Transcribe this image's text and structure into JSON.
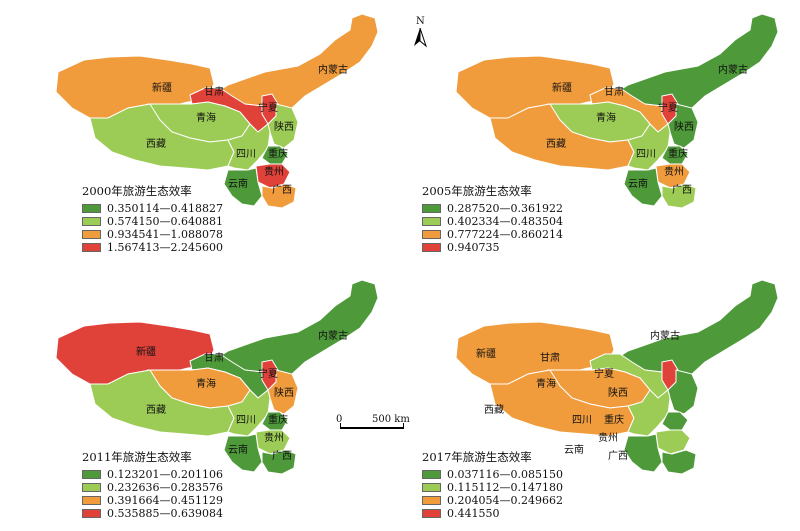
{
  "colors": {
    "dark_green": "#4e9a3a",
    "light_green": "#9ccc55",
    "orange": "#f09c3c",
    "red": "#e0423a"
  },
  "compass": {
    "north_label": "N"
  },
  "scale_bar": {
    "start_label": "0",
    "end_label": "500 km"
  },
  "region_labels": {
    "xinjiang": "新疆",
    "gansu": "甘肃",
    "neimenggu": "内蒙古",
    "qinghai": "青海",
    "ningxia": "宁夏",
    "shaanxi": "陕西",
    "xizang": "西藏",
    "sichuan": "四川",
    "chongqing": "重庆",
    "guizhou": "贵州",
    "yunnan": "云南",
    "guangxi": "广西"
  },
  "maps": [
    {
      "legend_title": "2000年旅游生态效率",
      "legend": [
        {
          "range": "0.350114—0.418827",
          "class": "dark_green"
        },
        {
          "range": "0.574150—0.640881",
          "class": "light_green"
        },
        {
          "range": "0.934541—1.088078",
          "class": "orange"
        },
        {
          "range": "1.567413—2.245600",
          "class": "red"
        }
      ],
      "fills": {
        "xinjiang": "orange",
        "xizang": "light_green",
        "qinghai": "light_green",
        "gansu": "red",
        "neimenggu": "orange",
        "ningxia": "red",
        "shaanxi": "light_green",
        "sichuan": "light_green",
        "chongqing": "dark_green",
        "guizhou": "red",
        "yunnan": "dark_green",
        "guangxi": "orange"
      }
    },
    {
      "legend_title": "2005年旅游生态效率",
      "legend": [
        {
          "range": "0.287520—0.361922",
          "class": "dark_green"
        },
        {
          "range": "0.402334—0.483504",
          "class": "light_green"
        },
        {
          "range": "0.777224—0.860214",
          "class": "orange"
        },
        {
          "range": "0.940735",
          "class": "red"
        }
      ],
      "fills": {
        "xinjiang": "orange",
        "xizang": "orange",
        "qinghai": "light_green",
        "gansu": "orange",
        "neimenggu": "dark_green",
        "ningxia": "red",
        "shaanxi": "dark_green",
        "sichuan": "light_green",
        "chongqing": "dark_green",
        "guizhou": "orange",
        "yunnan": "dark_green",
        "guangxi": "light_green"
      }
    },
    {
      "legend_title": "2011年旅游生态效率",
      "legend": [
        {
          "range": "0.123201—0.201106",
          "class": "dark_green"
        },
        {
          "range": "0.232636—0.283576",
          "class": "light_green"
        },
        {
          "range": "0.391664—0.451129",
          "class": "orange"
        },
        {
          "range": "0.535885—0.639084",
          "class": "red"
        }
      ],
      "fills": {
        "xinjiang": "red",
        "xizang": "light_green",
        "qinghai": "orange",
        "gansu": "dark_green",
        "neimenggu": "dark_green",
        "ningxia": "red",
        "shaanxi": "orange",
        "sichuan": "light_green",
        "chongqing": "dark_green",
        "guizhou": "light_green",
        "yunnan": "dark_green",
        "guangxi": "dark_green"
      }
    },
    {
      "legend_title": "2017年旅游生态效率",
      "legend": [
        {
          "range": "0.037116—0.085150",
          "class": "dark_green"
        },
        {
          "range": "0.115112—0.147180",
          "class": "light_green"
        },
        {
          "range": "0.204054—0.249662",
          "class": "orange"
        },
        {
          "range": "0.441550",
          "class": "red"
        }
      ],
      "fills": {
        "xinjiang": "orange",
        "xizang": "orange",
        "qinghai": "orange",
        "gansu": "light_green",
        "neimenggu": "dark_green",
        "ningxia": "red",
        "shaanxi": "dark_green",
        "sichuan": "light_green",
        "chongqing": "dark_green",
        "guizhou": "light_green",
        "yunnan": "dark_green",
        "guangxi": "dark_green"
      }
    }
  ]
}
